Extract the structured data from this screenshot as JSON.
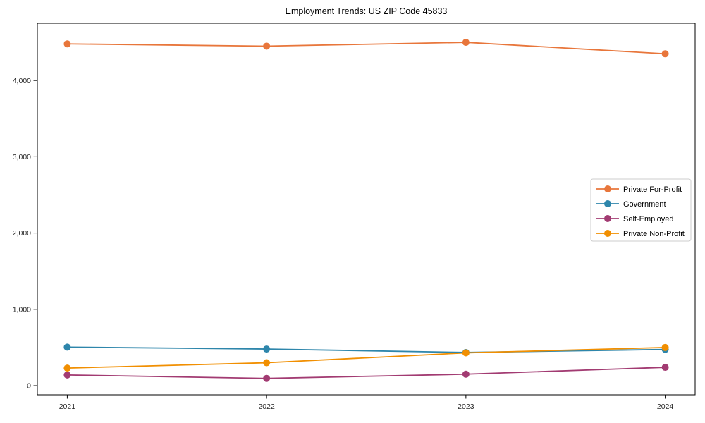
{
  "page": {
    "title": "Employment Trends: US ZIP Code 45833"
  },
  "chart_data": {
    "type": "line",
    "title": "Employment Trends: US ZIP Code 45833",
    "x": [
      2021,
      2022,
      2023,
      2024
    ],
    "x_tick_labels": [
      "2021",
      "2022",
      "2023",
      "2024"
    ],
    "series": [
      {
        "name": "Private For-Profit",
        "color": "#E8763B",
        "values": [
          4480,
          4450,
          4500,
          4350
        ]
      },
      {
        "name": "Government",
        "color": "#2E86AB",
        "values": [
          505,
          480,
          435,
          475
        ]
      },
      {
        "name": "Self-Employed",
        "color": "#A23B72",
        "values": [
          140,
          95,
          150,
          240
        ]
      },
      {
        "name": "Private Non-Profit",
        "color": "#F18F01",
        "values": [
          230,
          300,
          430,
          500
        ]
      }
    ],
    "y_ticks": [
      0,
      1000,
      2000,
      3000,
      4000
    ],
    "y_tick_labels": [
      "0",
      "1,000",
      "2,000",
      "3,000",
      "4,000"
    ],
    "ylim": [
      -120,
      4750
    ],
    "xlim": [
      2020.85,
      2024.15
    ],
    "xlabel": "",
    "ylabel": "",
    "grid": false,
    "legend_position": "center-right",
    "axis_color": "#000000",
    "tick_label_color": "#262626",
    "legend_border_color": "#cccccc",
    "background_color": "#ffffff"
  }
}
